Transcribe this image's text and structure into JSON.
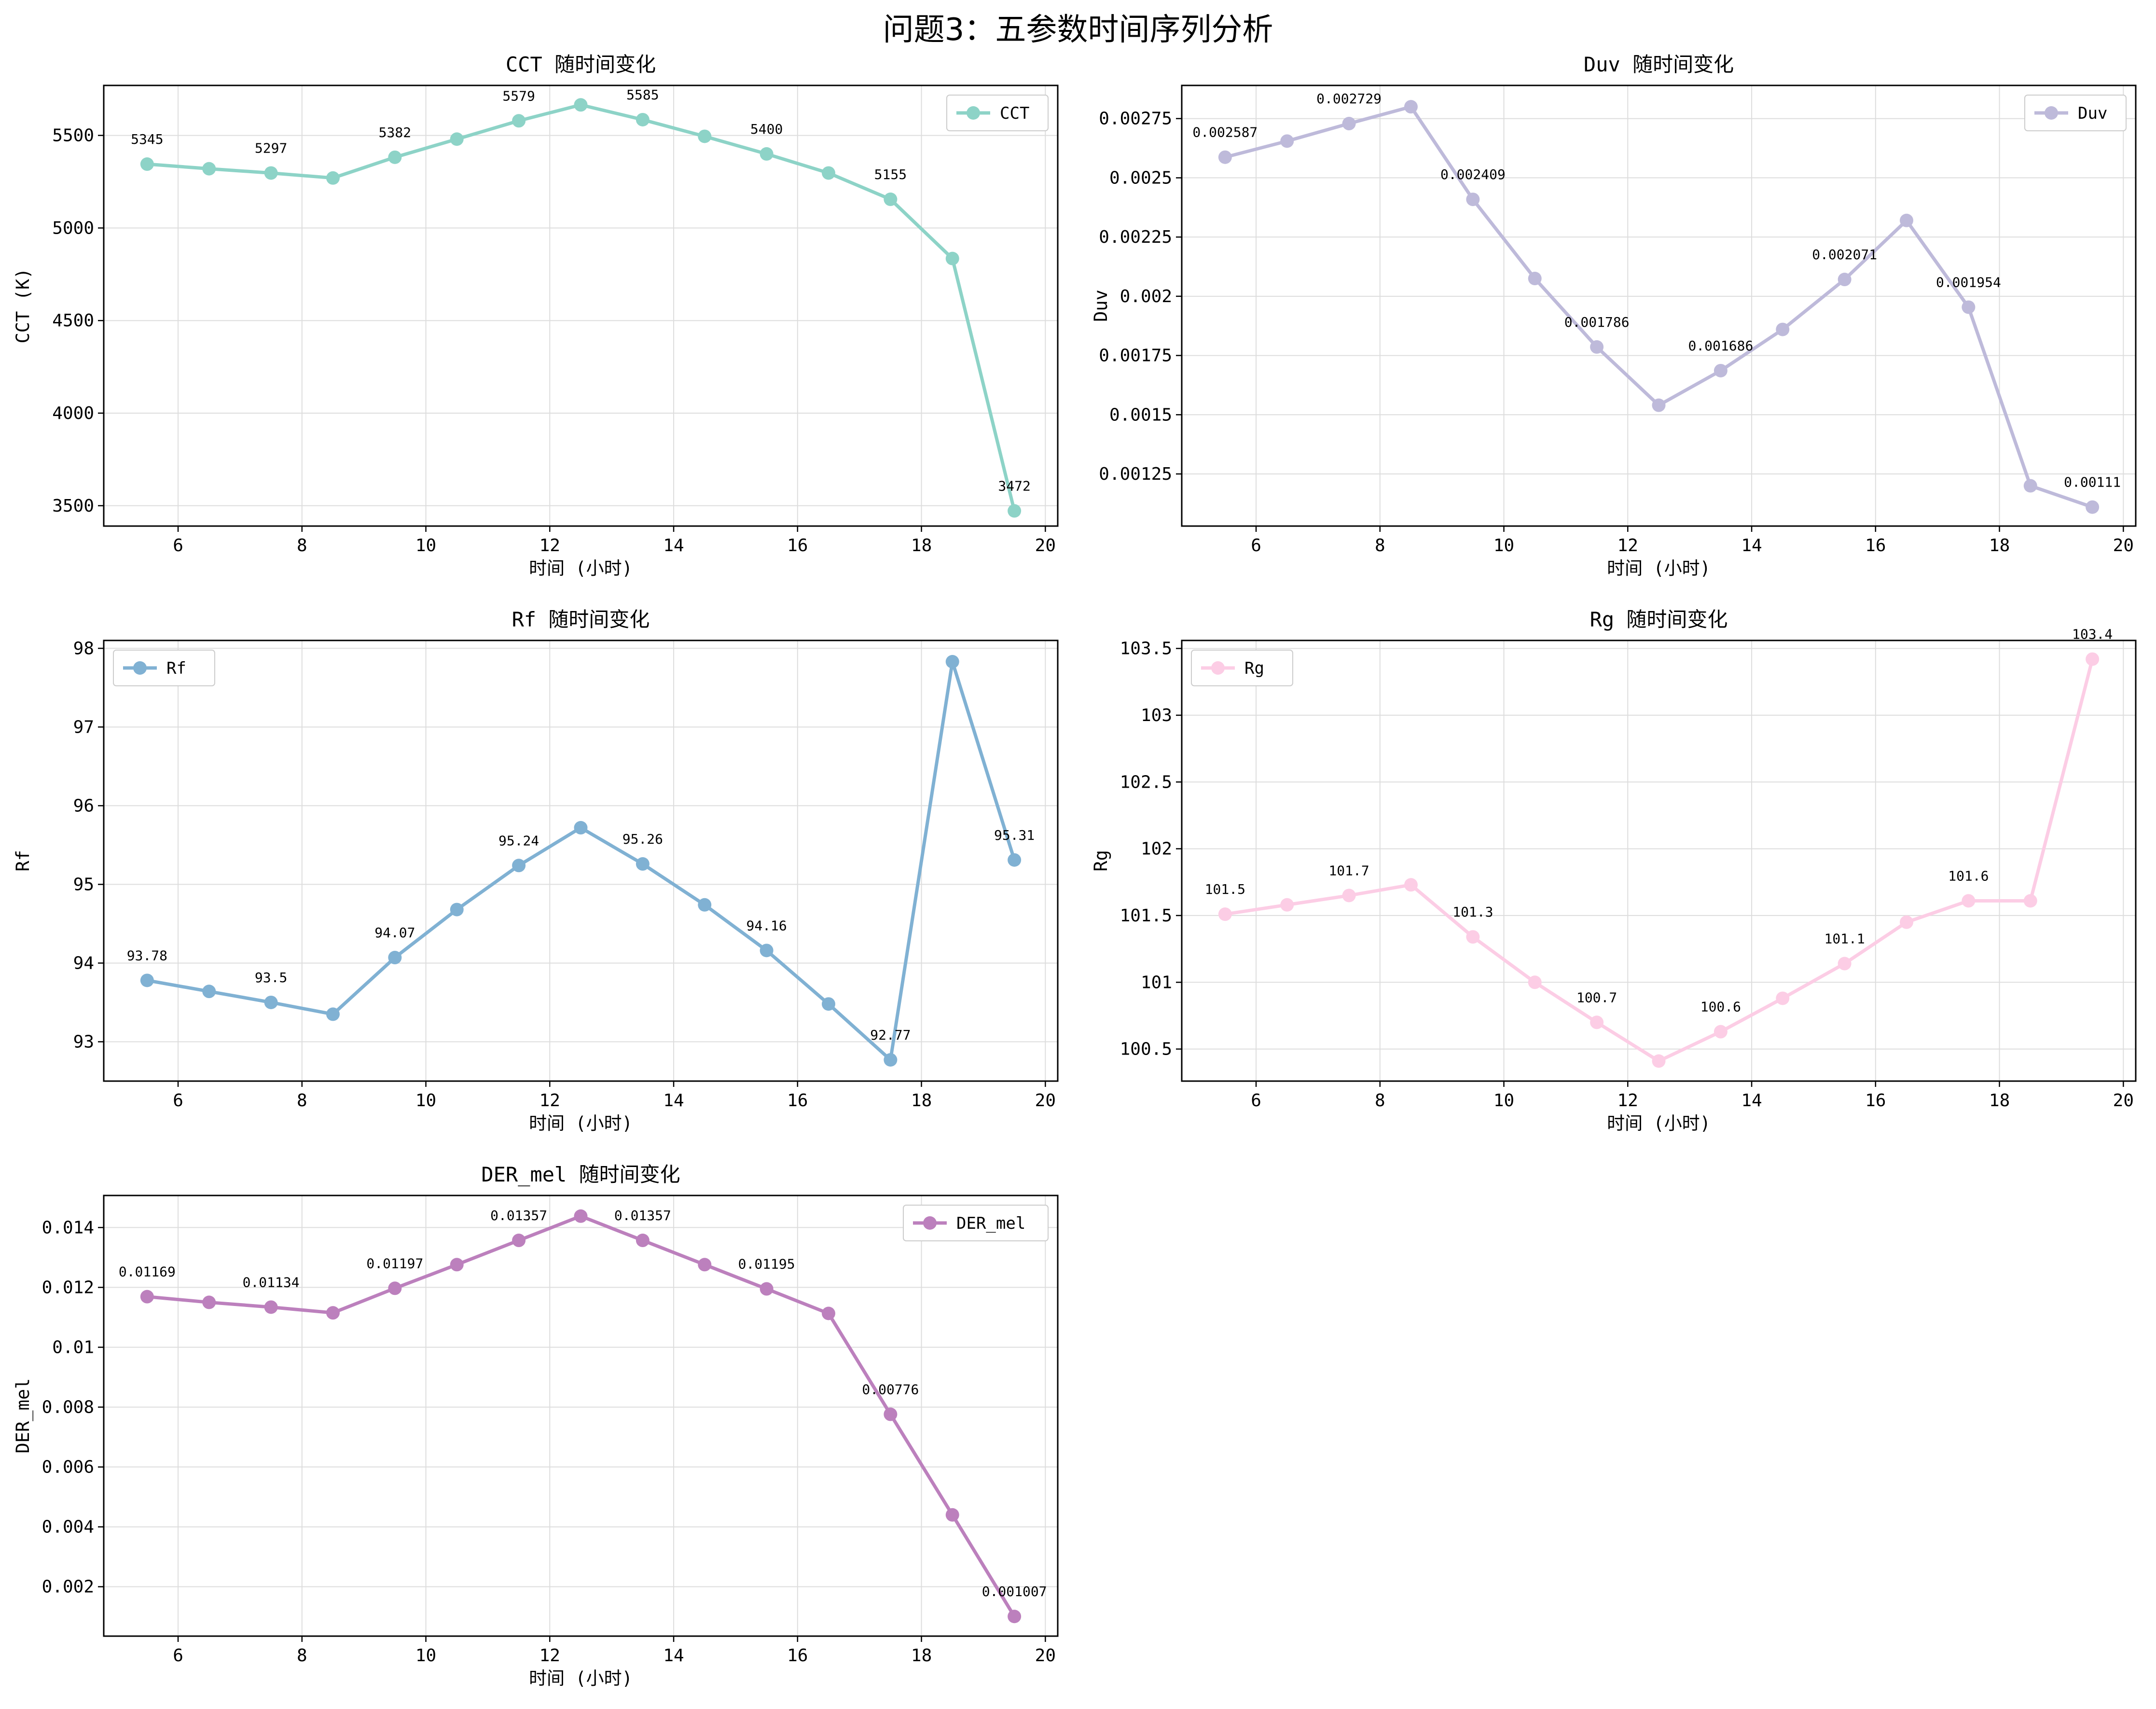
{
  "title": "问题3：五参数时间序列分析",
  "chart_data": [
    {
      "type": "line",
      "title": "CCT 随时间变化",
      "xlabel": "时间 (小时)",
      "ylabel": "CCT (K)",
      "color": "#8dd3c7",
      "legend": "top-right",
      "grid": true,
      "xlim": [
        4.8,
        20.2
      ],
      "ylim": [
        3390,
        5770
      ],
      "xticks": [
        6,
        8,
        10,
        12,
        14,
        16,
        18,
        20
      ],
      "yticks": [
        3500,
        4000,
        4500,
        5000,
        5500
      ],
      "x": [
        5.5,
        6.5,
        7.5,
        8.5,
        9.5,
        10.5,
        11.5,
        12.5,
        13.5,
        14.5,
        15.5,
        16.5,
        17.5,
        18.5,
        19.5
      ],
      "series": [
        {
          "name": "CCT",
          "values": [
            5345,
            5320,
            5297,
            5270,
            5382,
            5480,
            5579,
            5665,
            5585,
            5495,
            5400,
            5297,
            5155,
            4835,
            3472
          ]
        }
      ],
      "annotations": [
        {
          "x": 5.5,
          "y": 5345,
          "text": "5345"
        },
        {
          "x": 7.5,
          "y": 5297,
          "text": "5297"
        },
        {
          "x": 9.5,
          "y": 5382,
          "text": "5382"
        },
        {
          "x": 11.5,
          "y": 5579,
          "text": "5579"
        },
        {
          "x": 13.5,
          "y": 5585,
          "text": "5585"
        },
        {
          "x": 15.5,
          "y": 5400,
          "text": "5400"
        },
        {
          "x": 17.5,
          "y": 5155,
          "text": "5155"
        },
        {
          "x": 19.5,
          "y": 3472,
          "text": "3472"
        }
      ]
    },
    {
      "type": "line",
      "title": "Duv 随时间变化",
      "xlabel": "时间 (小时)",
      "ylabel": "Duv",
      "color": "#bebada",
      "legend": "top-right",
      "grid": true,
      "xlim": [
        4.8,
        20.2
      ],
      "ylim": [
        0.00103,
        0.00289
      ],
      "xticks": [
        6,
        8,
        10,
        12,
        14,
        16,
        18,
        20
      ],
      "yticks": [
        0.00125,
        0.0015,
        0.00175,
        0.002,
        0.00225,
        0.0025,
        0.00275
      ],
      "x": [
        5.5,
        6.5,
        7.5,
        8.5,
        9.5,
        10.5,
        11.5,
        12.5,
        13.5,
        14.5,
        15.5,
        16.5,
        17.5,
        18.5,
        19.5
      ],
      "series": [
        {
          "name": "Duv",
          "values": [
            0.002587,
            0.002655,
            0.002729,
            0.0028,
            0.002409,
            0.002075,
            0.001786,
            0.00154,
            0.001686,
            0.00186,
            0.002071,
            0.00232,
            0.001954,
            0.0012,
            0.00111
          ]
        }
      ],
      "annotations": [
        {
          "x": 5.5,
          "y": 0.002587,
          "text": "0.002587"
        },
        {
          "x": 7.5,
          "y": 0.002729,
          "text": "0.002729"
        },
        {
          "x": 9.5,
          "y": 0.002409,
          "text": "0.002409"
        },
        {
          "x": 11.5,
          "y": 0.001786,
          "text": "0.001786"
        },
        {
          "x": 13.5,
          "y": 0.001686,
          "text": "0.001686"
        },
        {
          "x": 15.5,
          "y": 0.002071,
          "text": "0.002071"
        },
        {
          "x": 17.5,
          "y": 0.001954,
          "text": "0.001954"
        },
        {
          "x": 19.5,
          "y": 0.00111,
          "text": "0.00111"
        }
      ]
    },
    {
      "type": "line",
      "title": "Rf 随时间变化",
      "xlabel": "时间 (小时)",
      "ylabel": "Rf",
      "color": "#80b1d3",
      "legend": "top-left",
      "grid": true,
      "xlim": [
        4.8,
        20.2
      ],
      "ylim": [
        92.5,
        98.1
      ],
      "xticks": [
        6,
        8,
        10,
        12,
        14,
        16,
        18,
        20
      ],
      "yticks": [
        93,
        94,
        95,
        96,
        97,
        98
      ],
      "x": [
        5.5,
        6.5,
        7.5,
        8.5,
        9.5,
        10.5,
        11.5,
        12.5,
        13.5,
        14.5,
        15.5,
        16.5,
        17.5,
        18.5,
        19.5
      ],
      "series": [
        {
          "name": "Rf",
          "values": [
            93.78,
            93.64,
            93.5,
            93.35,
            94.07,
            94.68,
            95.24,
            95.72,
            95.26,
            94.74,
            94.16,
            93.48,
            92.77,
            97.83,
            95.31
          ]
        }
      ],
      "annotations": [
        {
          "x": 5.5,
          "y": 93.78,
          "text": "93.78"
        },
        {
          "x": 7.5,
          "y": 93.5,
          "text": "93.5"
        },
        {
          "x": 9.5,
          "y": 94.07,
          "text": "94.07"
        },
        {
          "x": 11.5,
          "y": 95.24,
          "text": "95.24"
        },
        {
          "x": 13.5,
          "y": 95.26,
          "text": "95.26"
        },
        {
          "x": 15.5,
          "y": 94.16,
          "text": "94.16"
        },
        {
          "x": 17.5,
          "y": 92.77,
          "text": "92.77"
        },
        {
          "x": 19.5,
          "y": 95.31,
          "text": "95.31"
        }
      ]
    },
    {
      "type": "line",
      "title": "Rg 随时间变化",
      "xlabel": "时间 (小时)",
      "ylabel": "Rg",
      "color": "#fccde5",
      "legend": "top-left",
      "grid": true,
      "xlim": [
        4.8,
        20.2
      ],
      "ylim": [
        100.26,
        103.56
      ],
      "xticks": [
        6,
        8,
        10,
        12,
        14,
        16,
        18,
        20
      ],
      "yticks": [
        100.5,
        101.0,
        101.5,
        102.0,
        102.5,
        103.0,
        103.5
      ],
      "x": [
        5.5,
        6.5,
        7.5,
        8.5,
        9.5,
        10.5,
        11.5,
        12.5,
        13.5,
        14.5,
        15.5,
        16.5,
        17.5,
        18.5,
        19.5
      ],
      "series": [
        {
          "name": "Rg",
          "values": [
            101.51,
            101.58,
            101.65,
            101.73,
            101.34,
            101.0,
            100.7,
            100.41,
            100.63,
            100.88,
            101.14,
            101.45,
            101.61,
            101.61,
            103.42
          ]
        }
      ],
      "annotations": [
        {
          "x": 5.5,
          "y": 101.51,
          "text": "101.5"
        },
        {
          "x": 7.5,
          "y": 101.65,
          "text": "101.7"
        },
        {
          "x": 9.5,
          "y": 101.34,
          "text": "101.3"
        },
        {
          "x": 11.5,
          "y": 100.7,
          "text": "100.7"
        },
        {
          "x": 13.5,
          "y": 100.63,
          "text": "100.6"
        },
        {
          "x": 15.5,
          "y": 101.14,
          "text": "101.1"
        },
        {
          "x": 17.5,
          "y": 101.61,
          "text": "101.6"
        },
        {
          "x": 19.5,
          "y": 103.42,
          "text": "103.4"
        }
      ]
    },
    {
      "type": "line",
      "title": "DER_mel 随时间变化",
      "xlabel": "时间 (小时)",
      "ylabel": "DER_mel",
      "color": "#bc80bd",
      "legend": "top-right",
      "grid": true,
      "xlim": [
        4.8,
        20.2
      ],
      "ylim": [
        0.00035,
        0.01507
      ],
      "xticks": [
        6,
        8,
        10,
        12,
        14,
        16,
        18,
        20
      ],
      "yticks": [
        0.002,
        0.004,
        0.006,
        0.008,
        0.01,
        0.012,
        0.014
      ],
      "x": [
        5.5,
        6.5,
        7.5,
        8.5,
        9.5,
        10.5,
        11.5,
        12.5,
        13.5,
        14.5,
        15.5,
        16.5,
        17.5,
        18.5,
        19.5
      ],
      "series": [
        {
          "name": "DER_mel",
          "values": [
            0.01169,
            0.0115,
            0.01134,
            0.01115,
            0.01197,
            0.01276,
            0.01357,
            0.01438,
            0.01357,
            0.01276,
            0.01195,
            0.01113,
            0.00776,
            0.0044,
            0.001007
          ]
        }
      ],
      "annotations": [
        {
          "x": 5.5,
          "y": 0.01169,
          "text": "0.01169"
        },
        {
          "x": 7.5,
          "y": 0.01134,
          "text": "0.01134"
        },
        {
          "x": 9.5,
          "y": 0.01197,
          "text": "0.01197"
        },
        {
          "x": 11.5,
          "y": 0.01357,
          "text": "0.01357"
        },
        {
          "x": 13.5,
          "y": 0.01357,
          "text": "0.01357"
        },
        {
          "x": 15.5,
          "y": 0.01195,
          "text": "0.01195"
        },
        {
          "x": 17.5,
          "y": 0.00776,
          "text": "0.00776"
        },
        {
          "x": 19.5,
          "y": 0.001007,
          "text": "0.001007"
        }
      ]
    }
  ]
}
